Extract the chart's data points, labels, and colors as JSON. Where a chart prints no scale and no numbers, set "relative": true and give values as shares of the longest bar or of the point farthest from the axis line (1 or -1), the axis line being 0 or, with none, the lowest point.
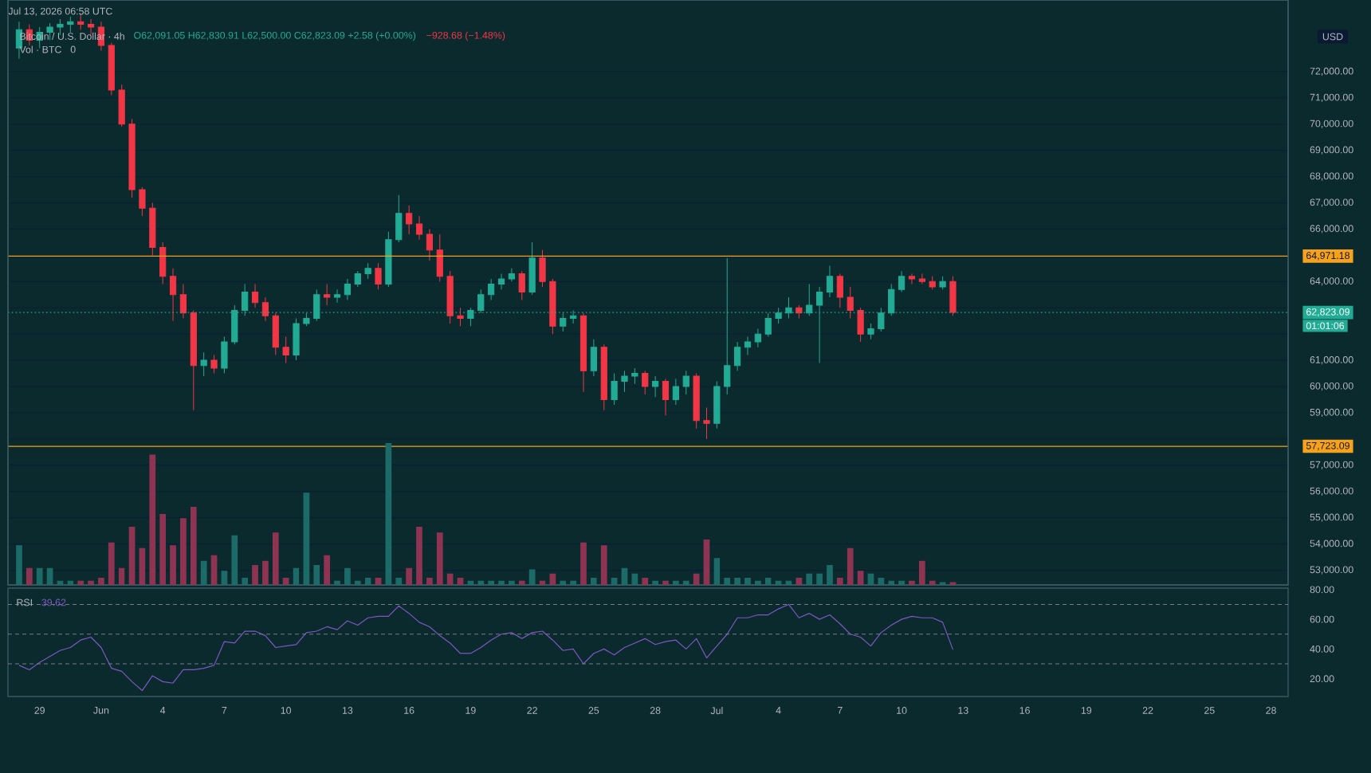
{
  "chart_data": [
    {
      "type": "candlestick",
      "title": "Bitcoin / U.S. Dollar · 4h",
      "subtitle": "O62,091.05 H62,830.91 L62,500.00 C62,823.09 +2.58 (+0.00%)",
      "ylabel": "USD",
      "annotations": [
        "Jul 13, 2026 06:58 UTC",
        "−928.68 (−1.48%)",
        "01:01:06"
      ],
      "x": [
        "2026-05-28T00:00",
        "2026-05-28T12:00",
        "2026-05-29T00:00",
        "2026-05-29T12:00",
        "2026-05-30T00:00",
        "2026-05-30T12:00",
        "2026-05-31T00:00",
        "2026-05-31T12:00",
        "2026-06-01T00:00",
        "2026-06-01T12:00",
        "2026-06-02T00:00",
        "2026-06-02T12:00",
        "2026-06-03T00:00",
        "2026-06-03T12:00",
        "2026-06-04T00:00",
        "2026-06-04T12:00",
        "2026-06-05T00:00",
        "2026-06-05T12:00",
        "2026-06-06T00:00",
        "2026-06-06T12:00",
        "2026-06-07T00:00",
        "2026-06-07T12:00",
        "2026-06-08T00:00",
        "2026-06-08T12:00",
        "2026-06-09T00:00",
        "2026-06-09T12:00",
        "2026-06-10T00:00",
        "2026-06-10T12:00",
        "2026-06-11T00:00",
        "2026-06-11T12:00",
        "2026-06-12T00:00",
        "2026-06-12T12:00",
        "2026-06-13T00:00",
        "2026-06-13T12:00",
        "2026-06-14T00:00",
        "2026-06-14T12:00",
        "2026-06-15T00:00",
        "2026-06-15T12:00",
        "2026-06-16T00:00",
        "2026-06-16T12:00",
        "2026-06-17T00:00",
        "2026-06-17T12:00",
        "2026-06-18T00:00",
        "2026-06-18T12:00",
        "2026-06-19T00:00",
        "2026-06-19T12:00",
        "2026-06-20T00:00",
        "2026-06-20T12:00",
        "2026-06-21T00:00",
        "2026-06-21T12:00",
        "2026-06-22T00:00",
        "2026-06-22T12:00",
        "2026-06-23T00:00",
        "2026-06-23T12:00",
        "2026-06-24T00:00",
        "2026-06-24T12:00",
        "2026-06-25T00:00",
        "2026-06-25T12:00",
        "2026-06-26T00:00",
        "2026-06-26T12:00",
        "2026-06-27T00:00",
        "2026-06-27T12:00",
        "2026-06-28T00:00",
        "2026-06-28T12:00",
        "2026-06-29T00:00",
        "2026-06-29T12:00",
        "2026-06-30T00:00",
        "2026-06-30T12:00",
        "2026-07-01T00:00",
        "2026-07-01T12:00",
        "2026-07-02T00:00",
        "2026-07-02T12:00",
        "2026-07-03T00:00",
        "2026-07-03T12:00",
        "2026-07-04T00:00",
        "2026-07-04T12:00",
        "2026-07-05T00:00",
        "2026-07-05T12:00",
        "2026-07-06T00:00",
        "2026-07-06T12:00",
        "2026-07-07T00:00",
        "2026-07-07T12:00",
        "2026-07-08T00:00",
        "2026-07-08T12:00",
        "2026-07-09T00:00",
        "2026-07-09T12:00",
        "2026-07-10T00:00",
        "2026-07-10T12:00",
        "2026-07-11T00:00",
        "2026-07-11T12:00",
        "2026-07-12T00:00",
        "2026-07-12T12:00"
      ],
      "ohlc": [
        [
          72900,
          73900,
          72500,
          73600
        ],
        [
          73600,
          73800,
          73000,
          73200
        ],
        [
          73200,
          73700,
          72900,
          73500
        ],
        [
          73500,
          73850,
          73200,
          73700
        ],
        [
          73700,
          74000,
          73400,
          73800
        ],
        [
          73800,
          74100,
          73500,
          73900
        ],
        [
          73900,
          74200,
          73600,
          73800
        ],
        [
          73800,
          74000,
          73400,
          73700
        ],
        [
          73700,
          73900,
          72800,
          73000
        ],
        [
          73000,
          73100,
          71100,
          71300
        ],
        [
          71300,
          71500,
          69900,
          70000
        ],
        [
          70000,
          70200,
          67200,
          67500
        ],
        [
          67500,
          67600,
          66500,
          66800
        ],
        [
          66800,
          67000,
          65000,
          65300
        ],
        [
          65300,
          65500,
          63900,
          64200
        ],
        [
          64200,
          64500,
          62500,
          63500
        ],
        [
          63500,
          63900,
          62600,
          62800
        ],
        [
          62800,
          62900,
          59100,
          60800
        ],
        [
          60800,
          61300,
          60400,
          61000
        ],
        [
          61000,
          61200,
          60500,
          60700
        ],
        [
          60700,
          61900,
          60500,
          61700
        ],
        [
          61700,
          63100,
          61600,
          62900
        ],
        [
          62900,
          63900,
          62700,
          63600
        ],
        [
          63600,
          63900,
          63000,
          63200
        ],
        [
          63200,
          63400,
          62500,
          62700
        ],
        [
          62700,
          62800,
          61200,
          61500
        ],
        [
          61500,
          61900,
          60900,
          61200
        ],
        [
          61200,
          62600,
          61000,
          62400
        ],
        [
          62400,
          62800,
          62300,
          62600
        ],
        [
          62600,
          63700,
          62500,
          63500
        ],
        [
          63500,
          63900,
          63100,
          63400
        ],
        [
          63400,
          63700,
          63200,
          63500
        ],
        [
          63500,
          64100,
          63300,
          63900
        ],
        [
          63900,
          64400,
          63800,
          64300
        ],
        [
          64300,
          64700,
          64100,
          64500
        ],
        [
          64500,
          64700,
          63700,
          63900
        ],
        [
          63900,
          65900,
          63800,
          65600
        ],
        [
          65600,
          67300,
          65500,
          66600
        ],
        [
          66600,
          66900,
          65800,
          66200
        ],
        [
          66200,
          66500,
          65600,
          65800
        ],
        [
          65800,
          66000,
          64800,
          65200
        ],
        [
          65200,
          65800,
          64000,
          64200
        ],
        [
          64200,
          64400,
          62400,
          62700
        ],
        [
          62700,
          63000,
          62300,
          62600
        ],
        [
          62600,
          63000,
          62300,
          62900
        ],
        [
          62900,
          63700,
          62800,
          63500
        ],
        [
          63500,
          64100,
          63300,
          63900
        ],
        [
          63900,
          64300,
          63700,
          64100
        ],
        [
          64100,
          64500,
          64000,
          64300
        ],
        [
          64300,
          64400,
          63300,
          63600
        ],
        [
          63600,
          65500,
          63500,
          64900
        ],
        [
          64900,
          65200,
          63800,
          64000
        ],
        [
          64000,
          64100,
          62000,
          62300
        ],
        [
          62300,
          62800,
          62100,
          62600
        ],
        [
          62600,
          62900,
          62400,
          62700
        ],
        [
          62700,
          62800,
          59800,
          60600
        ],
        [
          60600,
          61800,
          60400,
          61500
        ],
        [
          61500,
          61600,
          59100,
          59500
        ],
        [
          59500,
          60500,
          59300,
          60200
        ],
        [
          60200,
          60600,
          59800,
          60400
        ],
        [
          60400,
          60700,
          60100,
          60500
        ],
        [
          60500,
          60600,
          59700,
          60000
        ],
        [
          60000,
          60400,
          59600,
          60200
        ],
        [
          60200,
          60300,
          58900,
          59500
        ],
        [
          59500,
          60300,
          59300,
          60000
        ],
        [
          60000,
          60600,
          59700,
          60400
        ],
        [
          60400,
          60500,
          58400,
          58700
        ],
        [
          58700,
          59200,
          58000,
          58600
        ],
        [
          58600,
          60200,
          58400,
          60000
        ],
        [
          60000,
          64900,
          59700,
          60800
        ],
        [
          60800,
          61700,
          60600,
          61500
        ],
        [
          61500,
          61900,
          61200,
          61700
        ],
        [
          61700,
          62200,
          61500,
          62000
        ],
        [
          62000,
          62800,
          61900,
          62600
        ],
        [
          62600,
          63000,
          62400,
          62800
        ],
        [
          62800,
          63400,
          62600,
          63000
        ],
        [
          63000,
          63100,
          62600,
          62800
        ],
        [
          62800,
          63900,
          62700,
          63100
        ],
        [
          63100,
          63800,
          60900,
          63600
        ],
        [
          63600,
          64600,
          63400,
          64200
        ],
        [
          64200,
          64300,
          63000,
          63400
        ],
        [
          63400,
          63800,
          62600,
          62900
        ],
        [
          62900,
          63000,
          61700,
          62000
        ],
        [
          62000,
          62400,
          61800,
          62200
        ],
        [
          62200,
          63000,
          62100,
          62800
        ],
        [
          62800,
          63900,
          62700,
          63700
        ],
        [
          63700,
          64400,
          63600,
          64200
        ],
        [
          64200,
          64300,
          63900,
          64100
        ],
        [
          64100,
          64300,
          63900,
          64000
        ],
        [
          64000,
          64200,
          63700,
          63800
        ],
        [
          63800,
          64200,
          63700,
          64000
        ],
        [
          64000,
          64200,
          62700,
          62823.09
        ]
      ],
      "colors": [
        "#22ab94",
        "#f23645",
        "#22ab94",
        "#22ab94",
        "#22ab94",
        "#22ab94",
        "#f23645",
        "#f23645",
        "#f23645",
        "#f23645",
        "#f23645",
        "#f23645",
        "#f23645",
        "#f23645",
        "#f23645",
        "#f23645",
        "#f23645",
        "#f23645",
        "#22ab94",
        "#f23645",
        "#22ab94",
        "#22ab94",
        "#22ab94",
        "#f23645",
        "#f23645",
        "#f23645",
        "#f23645",
        "#22ab94",
        "#22ab94",
        "#22ab94",
        "#f23645",
        "#22ab94",
        "#22ab94",
        "#22ab94",
        "#22ab94",
        "#f23645",
        "#22ab94",
        "#22ab94",
        "#f23645",
        "#f23645",
        "#f23645",
        "#f23645",
        "#f23645",
        "#f23645",
        "#22ab94",
        "#22ab94",
        "#22ab94",
        "#22ab94",
        "#22ab94",
        "#f23645",
        "#22ab94",
        "#f23645",
        "#f23645",
        "#22ab94",
        "#22ab94",
        "#f23645",
        "#22ab94",
        "#f23645",
        "#22ab94",
        "#22ab94",
        "#22ab94",
        "#f23645",
        "#22ab94",
        "#f23645",
        "#22ab94",
        "#22ab94",
        "#f23645",
        "#f23645",
        "#22ab94",
        "#22ab94",
        "#22ab94",
        "#22ab94",
        "#22ab94",
        "#22ab94",
        "#22ab94",
        "#22ab94",
        "#f23645",
        "#22ab94",
        "#22ab94",
        "#22ab94",
        "#f23645",
        "#f23645",
        "#f23645",
        "#22ab94",
        "#22ab94",
        "#22ab94",
        "#22ab94",
        "#f23645",
        "#f23645",
        "#f23645",
        "#22ab94",
        "#f23645"
      ],
      "xlim": [
        "2026-05-27T11:00",
        "2026-07-28T20:00"
      ],
      "ylim": [
        52440,
        74730
      ],
      "yticks": [
        {
          "value": 53000,
          "label": "53,000.00"
        },
        {
          "value": 54000,
          "label": "54,000.00"
        },
        {
          "value": 55000,
          "label": "55,000.00"
        },
        {
          "value": 56000,
          "label": "56,000.00"
        },
        {
          "value": 57000,
          "label": "57,000.00"
        },
        {
          "value": 58000,
          "label": null
        },
        {
          "value": 59000,
          "label": "59,000.00"
        },
        {
          "value": 60000,
          "label": "60,000.00"
        },
        {
          "value": 61000,
          "label": "61,000.00"
        },
        {
          "value": 62000,
          "label": null
        },
        {
          "value": 63000,
          "label": null
        },
        {
          "value": 64000,
          "label": "64,000.00"
        },
        {
          "value": 65000,
          "label": null
        },
        {
          "value": 66000,
          "label": "66,000.00"
        },
        {
          "value": 67000,
          "label": "67,000.00"
        },
        {
          "value": 68000,
          "label": "68,000.00"
        },
        {
          "value": 69000,
          "label": "69,000.00"
        },
        {
          "value": 70000,
          "label": "70,000.00"
        },
        {
          "value": 71000,
          "label": "71,000.00"
        },
        {
          "value": 72000,
          "label": "72,000.00"
        }
      ],
      "grid": "y",
      "tick_labels": "y",
      "ref_lines": [
        {
          "axis": "y",
          "value": 64971.18,
          "label": "64,971.18",
          "color": "#f7a21b",
          "line_style": "solid"
        },
        {
          "axis": "y",
          "value": 57723.09,
          "label": "57,723.09",
          "color": "#f7a21b",
          "line_style": "solid"
        },
        {
          "axis": "y",
          "value": 62823.09,
          "label": "62,823.09",
          "color": "#22ab94",
          "line_style": "dotted"
        }
      ]
    },
    {
      "type": "bar",
      "title": "Vol · BTC",
      "annotations": [
        "0"
      ],
      "relative": true,
      "x": [
        "2026-05-28T00:00",
        "2026-05-28T12:00",
        "2026-05-29T00:00",
        "2026-05-29T12:00",
        "2026-05-30T00:00",
        "2026-05-30T12:00",
        "2026-05-31T00:00",
        "2026-05-31T12:00",
        "2026-06-01T00:00",
        "2026-06-01T12:00",
        "2026-06-02T00:00",
        "2026-06-02T12:00",
        "2026-06-03T00:00",
        "2026-06-03T12:00",
        "2026-06-04T00:00",
        "2026-06-04T12:00",
        "2026-06-05T00:00",
        "2026-06-05T12:00",
        "2026-06-06T00:00",
        "2026-06-06T12:00",
        "2026-06-07T00:00",
        "2026-06-07T12:00",
        "2026-06-08T00:00",
        "2026-06-08T12:00",
        "2026-06-09T00:00",
        "2026-06-09T12:00",
        "2026-06-10T00:00",
        "2026-06-10T12:00",
        "2026-06-11T00:00",
        "2026-06-11T12:00",
        "2026-06-12T00:00",
        "2026-06-12T12:00",
        "2026-06-13T00:00",
        "2026-06-13T12:00",
        "2026-06-14T00:00",
        "2026-06-14T12:00",
        "2026-06-15T00:00",
        "2026-06-15T12:00",
        "2026-06-16T00:00",
        "2026-06-16T12:00",
        "2026-06-17T00:00",
        "2026-06-17T12:00",
        "2026-06-18T00:00",
        "2026-06-18T12:00",
        "2026-06-19T00:00",
        "2026-06-19T12:00",
        "2026-06-20T00:00",
        "2026-06-20T12:00",
        "2026-06-21T00:00",
        "2026-06-21T12:00",
        "2026-06-22T00:00",
        "2026-06-22T12:00",
        "2026-06-23T00:00",
        "2026-06-23T12:00",
        "2026-06-24T00:00",
        "2026-06-24T12:00",
        "2026-06-25T00:00",
        "2026-06-25T12:00",
        "2026-06-26T00:00",
        "2026-06-26T12:00",
        "2026-06-27T00:00",
        "2026-06-27T12:00",
        "2026-06-28T00:00",
        "2026-06-28T12:00",
        "2026-06-29T00:00",
        "2026-06-29T12:00",
        "2026-06-30T00:00",
        "2026-06-30T12:00",
        "2026-07-01T00:00",
        "2026-07-01T12:00",
        "2026-07-02T00:00",
        "2026-07-02T12:00",
        "2026-07-03T00:00",
        "2026-07-03T12:00",
        "2026-07-04T00:00",
        "2026-07-04T12:00",
        "2026-07-05T00:00",
        "2026-07-05T12:00",
        "2026-07-06T00:00",
        "2026-07-06T12:00",
        "2026-07-07T00:00",
        "2026-07-07T12:00",
        "2026-07-08T00:00",
        "2026-07-08T12:00",
        "2026-07-09T00:00",
        "2026-07-09T12:00",
        "2026-07-10T00:00",
        "2026-07-10T12:00",
        "2026-07-11T00:00",
        "2026-07-11T12:00",
        "2026-07-12T00:00",
        "2026-07-12T12:00"
      ],
      "values": [
        0.28,
        0.12,
        0.12,
        0.12,
        0.03,
        0.03,
        0.03,
        0.03,
        0.05,
        0.3,
        0.12,
        0.41,
        0.26,
        0.92,
        0.5,
        0.28,
        0.47,
        0.55,
        0.17,
        0.21,
        0.1,
        0.35,
        0.05,
        0.14,
        0.17,
        0.37,
        0.05,
        0.12,
        0.65,
        0.14,
        0.21,
        0.03,
        0.12,
        0.03,
        0.05,
        0.05,
        1,
        0.05,
        0.12,
        0.41,
        0.05,
        0.37,
        0.08,
        0.05,
        0.03,
        0.03,
        0.03,
        0.03,
        0.03,
        0.03,
        0.11,
        0.03,
        0.08,
        0.03,
        0.03,
        0.3,
        0.05,
        0.28,
        0.05,
        0.12,
        0.08,
        0.05,
        0.03,
        0.03,
        0.03,
        0.03,
        0.08,
        0.32,
        0.19,
        0.05,
        0.05,
        0.05,
        0.03,
        0.05,
        0.03,
        0.03,
        0.05,
        0.08,
        0.08,
        0.14,
        0.05,
        0.26,
        0.1,
        0.08,
        0.05,
        0.03,
        0.03,
        0.03,
        0.17,
        0.03,
        0.02,
        0.02
      ],
      "colors": [
        "#1d6b68",
        "#8e3452",
        "#1d6b68",
        "#1d6b68",
        "#1d6b68",
        "#1d6b68",
        "#8e3452",
        "#8e3452",
        "#8e3452",
        "#8e3452",
        "#8e3452",
        "#8e3452",
        "#8e3452",
        "#8e3452",
        "#8e3452",
        "#8e3452",
        "#8e3452",
        "#8e3452",
        "#1d6b68",
        "#8e3452",
        "#1d6b68",
        "#1d6b68",
        "#1d6b68",
        "#8e3452",
        "#8e3452",
        "#8e3452",
        "#8e3452",
        "#1d6b68",
        "#1d6b68",
        "#1d6b68",
        "#8e3452",
        "#1d6b68",
        "#1d6b68",
        "#1d6b68",
        "#1d6b68",
        "#8e3452",
        "#1d6b68",
        "#1d6b68",
        "#8e3452",
        "#8e3452",
        "#8e3452",
        "#8e3452",
        "#8e3452",
        "#8e3452",
        "#1d6b68",
        "#1d6b68",
        "#1d6b68",
        "#1d6b68",
        "#1d6b68",
        "#8e3452",
        "#1d6b68",
        "#8e3452",
        "#8e3452",
        "#1d6b68",
        "#1d6b68",
        "#8e3452",
        "#1d6b68",
        "#8e3452",
        "#1d6b68",
        "#1d6b68",
        "#1d6b68",
        "#8e3452",
        "#1d6b68",
        "#8e3452",
        "#1d6b68",
        "#1d6b68",
        "#8e3452",
        "#8e3452",
        "#1d6b68",
        "#1d6b68",
        "#1d6b68",
        "#1d6b68",
        "#1d6b68",
        "#1d6b68",
        "#1d6b68",
        "#1d6b68",
        "#8e3452",
        "#1d6b68",
        "#1d6b68",
        "#1d6b68",
        "#8e3452",
        "#8e3452",
        "#8e3452",
        "#1d6b68",
        "#1d6b68",
        "#1d6b68",
        "#1d6b68",
        "#8e3452",
        "#8e3452",
        "#8e3452",
        "#1d6b68",
        "#8e3452"
      ],
      "xlim": [
        "2026-05-27T11:00",
        "2026-07-28T20:00"
      ],
      "tick_labels": false
    },
    {
      "type": "line",
      "title": "RSI",
      "annotations": [
        "39.62"
      ],
      "x": [
        "2026-05-28T00:00",
        "2026-05-28T12:00",
        "2026-05-29T00:00",
        "2026-05-29T12:00",
        "2026-05-30T00:00",
        "2026-05-30T12:00",
        "2026-05-31T00:00",
        "2026-05-31T12:00",
        "2026-06-01T00:00",
        "2026-06-01T12:00",
        "2026-06-02T00:00",
        "2026-06-02T12:00",
        "2026-06-03T00:00",
        "2026-06-03T12:00",
        "2026-06-04T00:00",
        "2026-06-04T12:00",
        "2026-06-05T00:00",
        "2026-06-05T12:00",
        "2026-06-06T00:00",
        "2026-06-06T12:00",
        "2026-06-07T00:00",
        "2026-06-07T12:00",
        "2026-06-08T00:00",
        "2026-06-08T12:00",
        "2026-06-09T00:00",
        "2026-06-09T12:00",
        "2026-06-10T00:00",
        "2026-06-10T12:00",
        "2026-06-11T00:00",
        "2026-06-11T12:00",
        "2026-06-12T00:00",
        "2026-06-12T12:00",
        "2026-06-13T00:00",
        "2026-06-13T12:00",
        "2026-06-14T00:00",
        "2026-06-14T12:00",
        "2026-06-15T00:00",
        "2026-06-15T12:00",
        "2026-06-16T00:00",
        "2026-06-16T12:00",
        "2026-06-17T00:00",
        "2026-06-17T12:00",
        "2026-06-18T00:00",
        "2026-06-18T12:00",
        "2026-06-19T00:00",
        "2026-06-19T12:00",
        "2026-06-20T00:00",
        "2026-06-20T12:00",
        "2026-06-21T00:00",
        "2026-06-21T12:00",
        "2026-06-22T00:00",
        "2026-06-22T12:00",
        "2026-06-23T00:00",
        "2026-06-23T12:00",
        "2026-06-24T00:00",
        "2026-06-24T12:00",
        "2026-06-25T00:00",
        "2026-06-25T12:00",
        "2026-06-26T00:00",
        "2026-06-26T12:00",
        "2026-06-27T00:00",
        "2026-06-27T12:00",
        "2026-06-28T00:00",
        "2026-06-28T12:00",
        "2026-06-29T00:00",
        "2026-06-29T12:00",
        "2026-06-30T00:00",
        "2026-06-30T12:00",
        "2026-07-01T00:00",
        "2026-07-01T12:00",
        "2026-07-02T00:00",
        "2026-07-02T12:00",
        "2026-07-03T00:00",
        "2026-07-03T12:00",
        "2026-07-04T00:00",
        "2026-07-04T12:00",
        "2026-07-05T00:00",
        "2026-07-05T12:00",
        "2026-07-06T00:00",
        "2026-07-06T12:00",
        "2026-07-07T00:00",
        "2026-07-07T12:00",
        "2026-07-08T00:00",
        "2026-07-08T12:00",
        "2026-07-09T00:00",
        "2026-07-09T12:00",
        "2026-07-10T00:00",
        "2026-07-10T12:00",
        "2026-07-11T00:00",
        "2026-07-11T12:00",
        "2026-07-12T00:00",
        "2026-07-12T12:00"
      ],
      "series": [
        {
          "color": "#7e57c2",
          "values": [
            29,
            26,
            31,
            35,
            39,
            41,
            46,
            48,
            41,
            27,
            25,
            18,
            12,
            22,
            18,
            17,
            26,
            26,
            27,
            29,
            45,
            44,
            52,
            52,
            49,
            41,
            42,
            43,
            51,
            52,
            55,
            53,
            59,
            56,
            61,
            62,
            62,
            69,
            64,
            58,
            55,
            49,
            44,
            37,
            37,
            41,
            46,
            50,
            51,
            47,
            51,
            52,
            46,
            39,
            40,
            30,
            37,
            40,
            36,
            41,
            44,
            47,
            43,
            45,
            46,
            40,
            47,
            34,
            42,
            50,
            61,
            61,
            63,
            63,
            67,
            70,
            61,
            64,
            60,
            63,
            57,
            50,
            48,
            42,
            51,
            56,
            60,
            62,
            61,
            61,
            58,
            39.62
          ]
        }
      ],
      "xlim": [
        "2026-05-27T11:00",
        "2026-07-28T20:00"
      ],
      "ylim": [
        8,
        81
      ],
      "xticks": [
        {
          "value": "2026-05-29",
          "label": "29"
        },
        {
          "value": "2026-06-01",
          "label": "Jun"
        },
        {
          "value": "2026-06-04",
          "label": "4"
        },
        {
          "value": "2026-06-07",
          "label": "7"
        },
        {
          "value": "2026-06-10",
          "label": "10"
        },
        {
          "value": "2026-06-13",
          "label": "13"
        },
        {
          "value": "2026-06-16",
          "label": "16"
        },
        {
          "value": "2026-06-19",
          "label": "19"
        },
        {
          "value": "2026-06-22",
          "label": "22"
        },
        {
          "value": "2026-06-25",
          "label": "25"
        },
        {
          "value": "2026-06-28",
          "label": "28"
        },
        {
          "value": "2026-07-01",
          "label": "Jul"
        },
        {
          "value": "2026-07-04",
          "label": "4"
        },
        {
          "value": "2026-07-07",
          "label": "7"
        },
        {
          "value": "2026-07-10",
          "label": "10"
        },
        {
          "value": "2026-07-13",
          "label": "13"
        },
        {
          "value": "2026-07-16",
          "label": "16"
        },
        {
          "value": "2026-07-19",
          "label": "19"
        },
        {
          "value": "2026-07-22",
          "label": "22"
        },
        {
          "value": "2026-07-25",
          "label": "25"
        },
        {
          "value": "2026-07-28",
          "label": "28"
        }
      ],
      "yticks": [
        {
          "value": 20,
          "label": "20.00"
        },
        {
          "value": 40,
          "label": "40.00"
        },
        {
          "value": 60,
          "label": "60.00"
        },
        {
          "value": 80,
          "label": "80.00"
        }
      ],
      "ref_lines": [
        {
          "axis": "y",
          "value": 70,
          "color": "#787b86",
          "line_style": "dashed"
        },
        {
          "axis": "y",
          "value": 50,
          "color": "#787b86",
          "line_style": "dashed"
        },
        {
          "axis": "y",
          "value": 30,
          "color": "#787b86",
          "line_style": "dashed"
        }
      ]
    }
  ]
}
